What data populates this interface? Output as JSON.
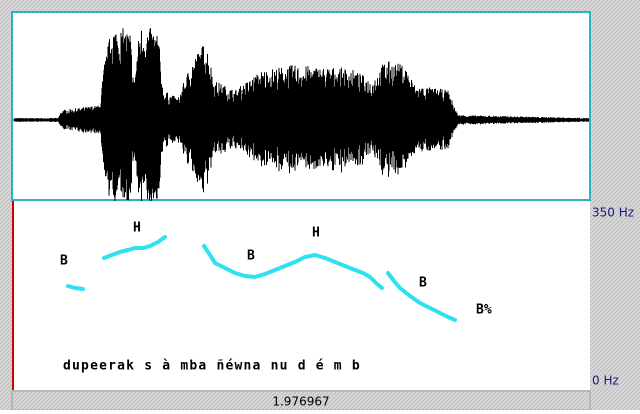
{
  "pitch_axis": {
    "top_label": "350 Hz",
    "bottom_label": "0 Hz"
  },
  "tones": [
    "B",
    "H",
    "B",
    "H",
    "B",
    "B%"
  ],
  "transcription": "dupeerak s à mba ñéwna nu d é m b",
  "time_readout": "1.976967"
}
